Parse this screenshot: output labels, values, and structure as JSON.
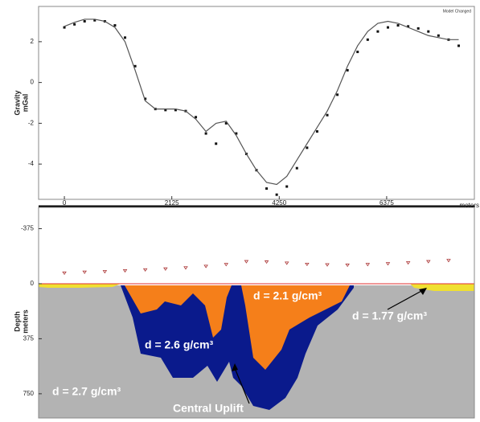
{
  "chart_data": [
    {
      "type": "gravity",
      "ylabel": [
        "Gravity",
        "mGal"
      ],
      "xlabel": "meters",
      "status": "Model Changed",
      "xlim": [
        -510,
        8110
      ],
      "ylim": [
        -5.65,
        3.65
      ],
      "xticks": [
        0,
        2125,
        4250,
        6375
      ],
      "yticks": [
        2,
        0,
        -2,
        -4
      ],
      "x": [
        0,
        200,
        400,
        600,
        800,
        1000,
        1200,
        1400,
        1600,
        1800,
        2000,
        2200,
        2400,
        2600,
        2800,
        3000,
        3200,
        3400,
        3600,
        3800,
        4000,
        4200,
        4400,
        4600,
        4800,
        5000,
        5200,
        5400,
        5600,
        5800,
        6000,
        6200,
        6400,
        6600,
        6800,
        7000,
        7200,
        7400,
        7600,
        7800
      ],
      "series": [
        {
          "style": "markers",
          "color": "#111",
          "values": [
            2.7,
            2.85,
            3.0,
            3.05,
            3.0,
            2.8,
            2.2,
            0.8,
            -0.8,
            -1.3,
            -1.35,
            -1.35,
            -1.4,
            -1.7,
            -2.5,
            -3.0,
            -2.0,
            -2.5,
            -3.5,
            -4.3,
            -5.2,
            -5.5,
            -5.1,
            -4.2,
            -3.2,
            -2.4,
            -1.6,
            -0.6,
            0.6,
            1.5,
            2.1,
            2.5,
            2.7,
            2.8,
            2.75,
            2.65,
            2.5,
            2.3,
            2.1,
            1.8
          ]
        },
        {
          "style": "line",
          "color": "#555",
          "values": [
            2.75,
            2.95,
            3.1,
            3.1,
            3.0,
            2.7,
            2.0,
            0.6,
            -0.9,
            -1.3,
            -1.3,
            -1.3,
            -1.4,
            -1.8,
            -2.4,
            -2.0,
            -1.9,
            -2.6,
            -3.5,
            -4.3,
            -4.9,
            -5.0,
            -4.6,
            -3.8,
            -3.0,
            -2.2,
            -1.4,
            -0.4,
            0.8,
            1.8,
            2.5,
            2.9,
            3.0,
            2.9,
            2.7,
            2.5,
            2.3,
            2.2,
            2.1,
            2.1
          ]
        }
      ]
    },
    {
      "type": "section",
      "ylabel": [
        "Depth",
        "meters"
      ],
      "xlim": [
        -510,
        8110
      ],
      "ylim": [
        915,
        -520
      ],
      "yticks": [
        -375,
        0,
        375,
        750
      ],
      "stations": {
        "color": "#a33",
        "x": [
          0,
          400,
          800,
          1200,
          1600,
          2000,
          2400,
          2800,
          3200,
          3600,
          4000,
          4400,
          4800,
          5200,
          5600,
          6000,
          6400,
          6800,
          7200,
          7600
        ],
        "values": [
          -72,
          -78,
          -82,
          -88,
          -94,
          -100,
          -108,
          -118,
          -130,
          -150,
          -148,
          -140,
          -132,
          -128,
          -126,
          -130,
          -136,
          -142,
          -150,
          -158
        ]
      },
      "annotations": [
        "d = 2.1 g/cm³",
        "d = 1.77 g/cm³",
        "d = 2.6 g/cm³",
        "d = 2.7 g/cm³",
        "Central Uplift"
      ]
    }
  ]
}
